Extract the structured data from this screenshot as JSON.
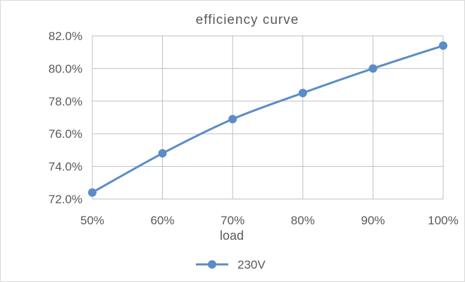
{
  "chart_data": {
    "type": "line",
    "title": "efficiency curve",
    "xlabel": "load",
    "ylabel": "",
    "categories": [
      "50%",
      "60%",
      "70%",
      "80%",
      "90%",
      "100%"
    ],
    "series": [
      {
        "name": "230V",
        "values": [
          72.4,
          74.8,
          76.9,
          78.5,
          80.0,
          81.4
        ],
        "color": "#5b8cc8"
      }
    ],
    "ylim": [
      72.0,
      82.0
    ],
    "yticks": [
      "72.0%",
      "74.0%",
      "76.0%",
      "78.0%",
      "80.0%",
      "82.0%"
    ],
    "grid": true,
    "legend_position": "bottom"
  }
}
